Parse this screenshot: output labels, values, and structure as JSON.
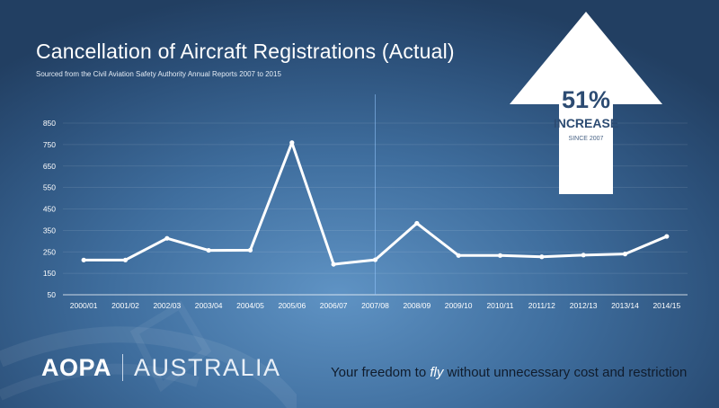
{
  "header": {
    "title": "Cancellation of Aircraft Registrations (Actual)",
    "subtitle": "Sourced from the Civil Aviation Safety Authority Annual Reports 2007 to 2015"
  },
  "callout": {
    "percent": "51%",
    "label": "INCREASE",
    "since": "SINCE 2007"
  },
  "brand": {
    "name": "AOPA",
    "region": "AUSTRALIA"
  },
  "tagline": {
    "before": "Your freedom to ",
    "emphasis": "fly",
    "after": " without unnecessary cost and restriction"
  },
  "colors": {
    "line": "#ffffff",
    "arrow": "#ffffff",
    "callout_text": "#2c4b72"
  },
  "chart_data": {
    "type": "line",
    "title": "Cancellation of Aircraft Registrations (Actual)",
    "subtitle": "Sourced from the Civil Aviation Safety Authority Annual Reports 2007 to 2015",
    "xlabel": "",
    "ylabel": "",
    "categories": [
      "2000/01",
      "2001/02",
      "2002/03",
      "2003/04",
      "2004/05",
      "2005/06",
      "2006/07",
      "2007/08",
      "2008/09",
      "2009/10",
      "2010/11",
      "2011/12",
      "2012/13",
      "2013/14",
      "2014/15"
    ],
    "series": [
      {
        "values": [
          212,
          212,
          313,
          257,
          258,
          759,
          192,
          213,
          383,
          233,
          233,
          227,
          235,
          240,
          322
        ]
      }
    ],
    "ylim": [
      50,
      850
    ],
    "yticks": [
      50,
      150,
      250,
      350,
      450,
      550,
      650,
      750,
      850
    ],
    "grid": true,
    "reference_line": "2007/08"
  }
}
